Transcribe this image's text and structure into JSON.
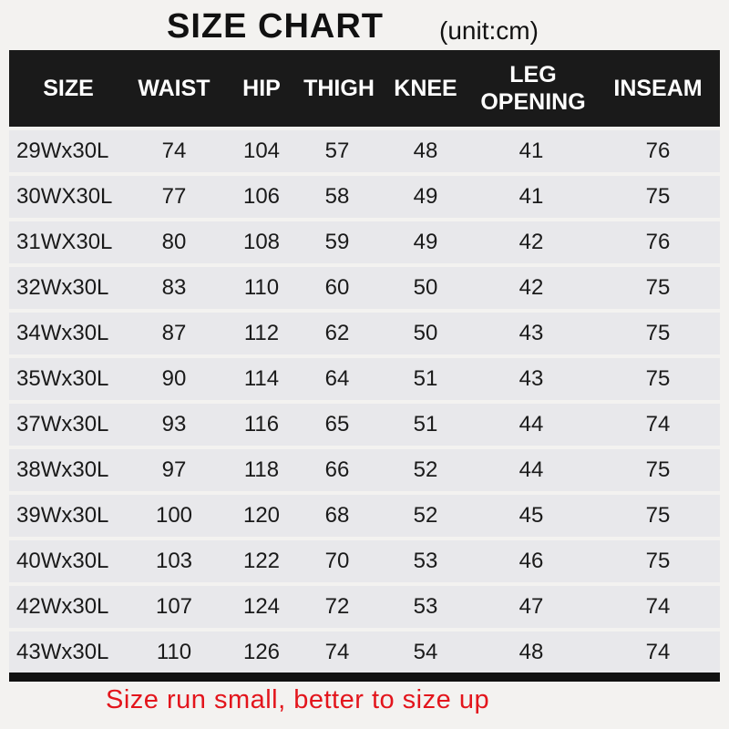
{
  "title": "SIZE CHART",
  "unit": "(unit:cm)",
  "columns": [
    "SIZE",
    "WAIST",
    "HIP",
    "THIGH",
    "KNEE",
    "LEG OPENING",
    "INSEAM"
  ],
  "leg_opening_lines": [
    "LEG",
    "OPENING"
  ],
  "rows": [
    [
      "29Wx30L",
      "74",
      "104",
      "57",
      "48",
      "41",
      "76"
    ],
    [
      "30WX30L",
      "77",
      "106",
      "58",
      "49",
      "41",
      "75"
    ],
    [
      "31WX30L",
      "80",
      "108",
      "59",
      "49",
      "42",
      "76"
    ],
    [
      "32Wx30L",
      "83",
      "110",
      "60",
      "50",
      "42",
      "75"
    ],
    [
      "34Wx30L",
      "87",
      "112",
      "62",
      "50",
      "43",
      "75"
    ],
    [
      "35Wx30L",
      "90",
      "114",
      "64",
      "51",
      "43",
      "75"
    ],
    [
      "37Wx30L",
      "93",
      "116",
      "65",
      "51",
      "44",
      "74"
    ],
    [
      "38Wx30L",
      "97",
      "118",
      "66",
      "52",
      "44",
      "75"
    ],
    [
      "39Wx30L",
      "100",
      "120",
      "68",
      "52",
      "45",
      "75"
    ],
    [
      "40Wx30L",
      "103",
      "122",
      "70",
      "53",
      "46",
      "75"
    ],
    [
      "42Wx30L",
      "107",
      "124",
      "72",
      "53",
      "47",
      "74"
    ],
    [
      "43Wx30L",
      "110",
      "126",
      "74",
      "54",
      "48",
      "74"
    ]
  ],
  "note": "Size run small, better to size up",
  "colors": {
    "header_bg": "#1a1a1a",
    "row_bg": "#e8e8eb",
    "note": "#e3151c"
  }
}
